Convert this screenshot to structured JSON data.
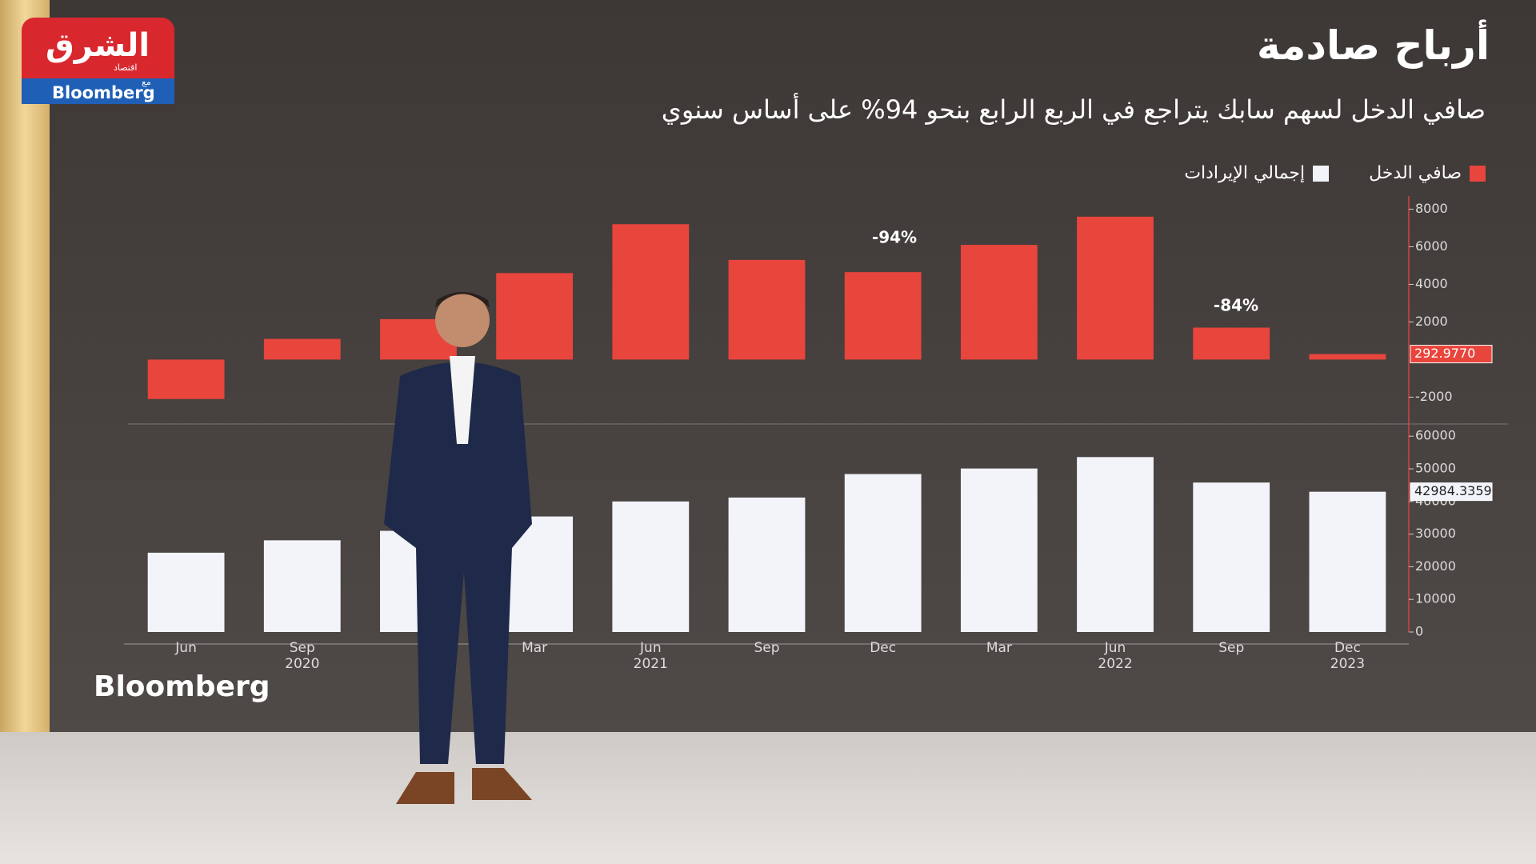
{
  "logo": {
    "name": "الشرق",
    "sub": "اقتصاد",
    "with": "مع",
    "partner": "Bloomberg"
  },
  "title": "أرباح صادمة",
  "subtitle": "صافي الدخل لسهم سابك يتراجع في الربع الرابع بنحو 94% على أساس سنوي",
  "watermark": "Bloomberg",
  "chart_data": [
    {
      "type": "bar",
      "series": [
        {
          "name": "صافي الدخل",
          "color": "#e8453c",
          "values": [
            -2100,
            1100,
            2150,
            4600,
            7200,
            5300,
            4650,
            6100,
            7600,
            1700,
            292.977
          ]
        }
      ],
      "ylim": [
        -3300,
        8700
      ],
      "yticks": [
        -2000,
        2000,
        4000,
        6000,
        8000
      ],
      "annotations": [
        "-94%",
        "-84%"
      ],
      "last_value": {
        "value": 292.977,
        "label": "292.9770"
      }
    },
    {
      "type": "bar",
      "categories": [
        "Jun",
        "Sep\n2020",
        null,
        "Mar",
        "Jun\n2021",
        "Sep",
        "Dec",
        "Mar",
        "Jun\n2022",
        "Sep",
        "Dec\n2023"
      ],
      "series": [
        {
          "name": "إجمالي الإيرادات",
          "color": "#f2f4fa",
          "values": [
            24300,
            28100,
            31000,
            35400,
            40000,
            41200,
            48400,
            50100,
            53600,
            45800,
            42984.3359
          ]
        }
      ],
      "ylim": [
        0,
        63000
      ],
      "yticks": [
        0,
        10000,
        20000,
        30000,
        40000,
        50000,
        60000
      ],
      "last_value": {
        "value": 42984.3359,
        "label": "42984.3359"
      }
    }
  ]
}
